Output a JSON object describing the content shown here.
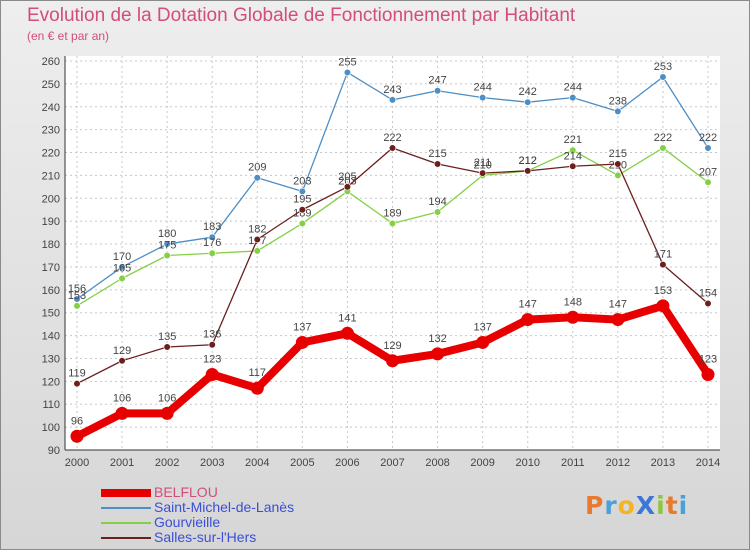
{
  "title": "Evolution de la Dotation Globale de Fonctionnement par Habitant",
  "subtitle": "(en € et par an)",
  "logo": {
    "text": "ProXiti",
    "letter_colors": [
      "#e8792d",
      "#4aa0d8",
      "#f5b521",
      "#3c77d6",
      "#8dc63f",
      "#e8792d",
      "#4aa0d8"
    ]
  },
  "chart_data": {
    "type": "line",
    "x": [
      "2000",
      "2001",
      "2002",
      "2003",
      "2004",
      "2005",
      "2006",
      "2007",
      "2008",
      "2009",
      "2010",
      "2011",
      "2012",
      "2013",
      "2014"
    ],
    "ylim": [
      90,
      260
    ],
    "yticks": [
      90,
      100,
      110,
      120,
      130,
      140,
      150,
      160,
      170,
      180,
      190,
      200,
      210,
      220,
      230,
      240,
      250,
      260
    ],
    "title": "Evolution de la Dotation Globale de Fonctionnement par Habitant",
    "ylabel": "(en € et par an)",
    "xlabel": "",
    "grid": true,
    "series": [
      {
        "name": "Saint-Michel-de-Lanès",
        "color": "#4d8ec4",
        "values": [
          156,
          170,
          180,
          183,
          209,
          203,
          255,
          243,
          247,
          244,
          242,
          244,
          238,
          253,
          222
        ]
      },
      {
        "name": "Gourvieille",
        "color": "#84d045",
        "values": [
          153,
          165,
          175,
          176,
          177,
          189,
          203,
          189,
          194,
          210,
          212,
          221,
          210,
          222,
          207
        ]
      },
      {
        "name": "Salles-sur-l'Hers",
        "color": "#6b1f1f",
        "values": [
          119,
          129,
          135,
          136,
          182,
          195,
          205,
          222,
          215,
          211,
          212,
          214,
          215,
          171,
          154
        ]
      },
      {
        "name": "BELFLOU",
        "color": "#e80000",
        "values": [
          96,
          106,
          106,
          123,
          117,
          137,
          141,
          129,
          132,
          137,
          147,
          148,
          147,
          153,
          123
        ]
      }
    ]
  },
  "legend": [
    {
      "name": "BELFLOU",
      "color": "#e80000",
      "text_color": "#d24d7c"
    },
    {
      "name": "Saint-Michel-de-Lanès",
      "color": "#4d8ec4",
      "text_color": "#3a4fd6"
    },
    {
      "name": "Gourvieille",
      "color": "#84d045",
      "text_color": "#3a4fd6"
    },
    {
      "name": "Salles-sur-l'Hers",
      "color": "#6b1f1f",
      "text_color": "#3a4fd6"
    }
  ]
}
